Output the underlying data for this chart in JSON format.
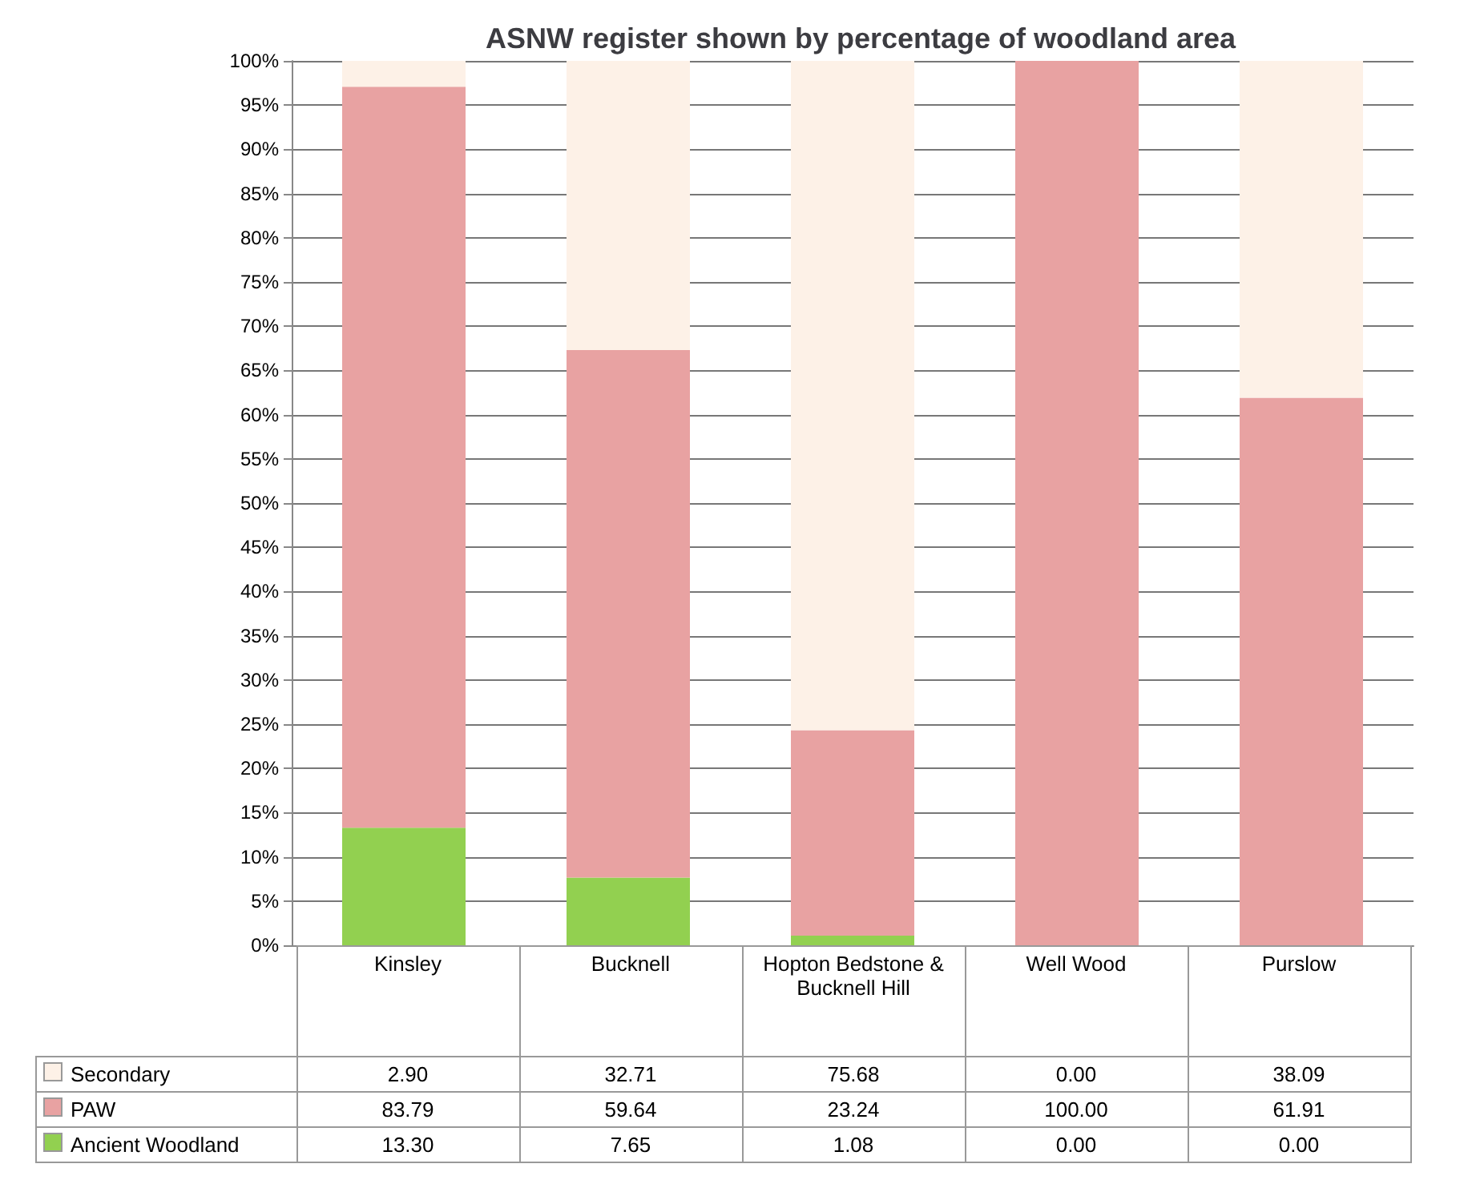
{
  "chart_data": {
    "type": "bar",
    "title": "ASNW register shown by percentage of woodland area",
    "stacked": true,
    "categories": [
      "Kinsley",
      "Bucknell",
      "Hopton Bedstone & Bucknell Hill",
      "Well Wood",
      "Purslow"
    ],
    "series": [
      {
        "name": "Ancient Woodland",
        "color": "#92d050",
        "values": [
          13.3,
          7.65,
          1.08,
          0,
          0
        ],
        "value_labels": [
          "13.30",
          "7.65",
          "1.08",
          "0.00",
          "0.00"
        ]
      },
      {
        "name": "PAW",
        "color": "#e8a2a2",
        "values": [
          83.79,
          59.64,
          23.24,
          100,
          61.91
        ],
        "value_labels": [
          "83.79",
          "59.64",
          "23.24",
          "100.00",
          "61.91"
        ]
      },
      {
        "name": "Secondary",
        "color": "#fdf1e7",
        "values": [
          2.9,
          32.71,
          75.68,
          0,
          38.09
        ],
        "value_labels": [
          "2.90",
          "32.71",
          "75.68",
          "0.00",
          "38.09"
        ]
      }
    ],
    "ylim": [
      0,
      100
    ],
    "yticks": [
      {
        "value": 0,
        "label": "0%"
      },
      {
        "value": 5,
        "label": "5%"
      },
      {
        "value": 10,
        "label": "10%"
      },
      {
        "value": 15,
        "label": "15%"
      },
      {
        "value": 20,
        "label": "20%"
      },
      {
        "value": 25,
        "label": "25%"
      },
      {
        "value": 30,
        "label": "30%"
      },
      {
        "value": 35,
        "label": "35%"
      },
      {
        "value": 40,
        "label": "40%"
      },
      {
        "value": 45,
        "label": "45%"
      },
      {
        "value": 50,
        "label": "50%"
      },
      {
        "value": 55,
        "label": "55%"
      },
      {
        "value": 60,
        "label": "60%"
      },
      {
        "value": 65,
        "label": "65%"
      },
      {
        "value": 70,
        "label": "70%"
      },
      {
        "value": 75,
        "label": "75%"
      },
      {
        "value": 80,
        "label": "80%"
      },
      {
        "value": 85,
        "label": "85%"
      },
      {
        "value": 90,
        "label": "90%"
      },
      {
        "value": 95,
        "label": "95%"
      },
      {
        "value": 100,
        "label": "100%"
      }
    ],
    "grid": "y",
    "legend": "bottom left"
  }
}
